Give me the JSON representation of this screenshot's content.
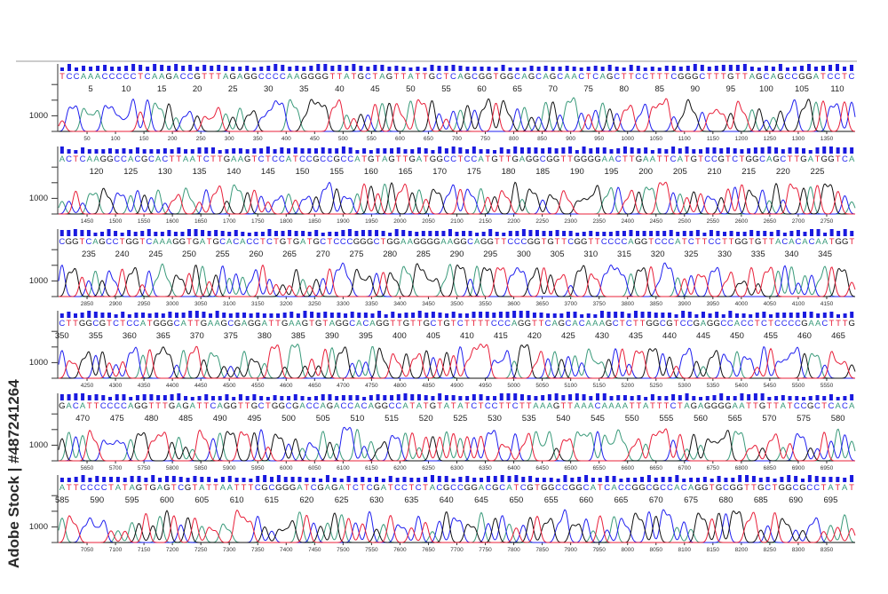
{
  "watermark": "Adobe Stock | #487241264",
  "colors": {
    "A": "#3a9a7a",
    "C": "#1f1fef",
    "G": "#111111",
    "T": "#e8203a",
    "quality_bar": "#1a1adf"
  },
  "chart_data": {
    "type": "chromatogram",
    "title": "",
    "y_tick_label": "1000",
    "rows": [
      {
        "sequence": "TCCAAACCCCCTCAAGACCGTTTAGAGGCCCCAAGGGGTTATGCTAGTTATTGCTCAGCGGTGGCAGCAGCAACTCAGCTTCCTTTCGGGCTTTGTTAGCAGCCGGATCCTC",
        "base_ticks": [
          5,
          10,
          15,
          20,
          25,
          30,
          35,
          40,
          45,
          50,
          55,
          60,
          65,
          70,
          75,
          80,
          85,
          90,
          95,
          100,
          105,
          110
        ],
        "scan_ticks": [
          50,
          100,
          150,
          200,
          250,
          300,
          350,
          400,
          450,
          500,
          550,
          600,
          650,
          700,
          750,
          800,
          850,
          900,
          950,
          1000,
          1050,
          1100,
          1150,
          1200,
          1250,
          1300,
          1350
        ]
      },
      {
        "sequence": "ACTCAAGGCCACGCACTTAATCTTGAAGTCTCCATCCGCCGCCATGTAGTTGATGGCCTCCATGTTGAGGCGGTTGGGGAACTTGAATTCATGTCCGTCTGGCAGCTTGATGGTCA",
        "base_ticks": [
          120,
          125,
          130,
          135,
          140,
          145,
          150,
          155,
          160,
          165,
          170,
          175,
          180,
          185,
          190,
          195,
          200,
          205,
          210,
          215,
          220,
          225
        ],
        "scan_ticks": [
          1450,
          1500,
          1550,
          1600,
          1650,
          1700,
          1750,
          1800,
          1850,
          1900,
          1950,
          2000,
          2050,
          2100,
          2150,
          2200,
          2250,
          2300,
          2350,
          2400,
          2450,
          2500,
          2550,
          2600,
          2650,
          2700,
          2750
        ]
      },
      {
        "sequence": "CGGTCAGCCTGGTCAAAGGTGATGCACACCTCTGTGATGCTCCCGGGCTGGAAGGGGAAGGCAGGTTCCCGGTGTTCGGTTCCCCAGGTCCCATCTTCCTTGGTGTTACACACAATGGT",
        "base_ticks": [
          235,
          240,
          245,
          250,
          255,
          260,
          265,
          270,
          275,
          280,
          285,
          290,
          295,
          300,
          305,
          310,
          315,
          320,
          325,
          330,
          335,
          340,
          345
        ],
        "scan_ticks": [
          2850,
          2900,
          2950,
          3000,
          3050,
          3100,
          3150,
          3200,
          3250,
          3300,
          3350,
          3400,
          3450,
          3500,
          3550,
          3600,
          3650,
          3700,
          3750,
          3800,
          3850,
          3900,
          3950,
          4000,
          4050,
          4100,
          4150
        ]
      },
      {
        "sequence": "CTTGGCGTCTCCATGGGCATTGAAGCGAGGATTGAAGTGTAGGCACAGGTTGTTGCTGTCTTTTCCCAGGTTCAGCACAAAGCTCTTGGCGTCCGAGGCCACCTCTCCCCGAACTTTG",
        "base_ticks": [
          350,
          355,
          360,
          365,
          370,
          375,
          380,
          385,
          390,
          395,
          400,
          405,
          410,
          415,
          420,
          425,
          430,
          435,
          440,
          445,
          450,
          455,
          460,
          465
        ],
        "scan_ticks": [
          4250,
          4300,
          4350,
          4400,
          4450,
          4500,
          4550,
          4600,
          4650,
          4700,
          4750,
          4800,
          4850,
          4900,
          4950,
          5000,
          5050,
          5100,
          5150,
          5200,
          5250,
          5300,
          5350,
          5400,
          5450,
          5500,
          5550
        ]
      },
      {
        "sequence": "GACATTCCCCAGGTTTGAGATTCAGGTTGCTGGCGACCAGACCACAGGCCATATGTATATCTCCTTCTTAAAGTTAAACAAAATTATTTCTAGAGGGGAATTGTTATCCGCTCACA",
        "base_ticks": [
          470,
          475,
          480,
          485,
          490,
          495,
          500,
          505,
          510,
          515,
          520,
          525,
          530,
          535,
          540,
          545,
          550,
          555,
          560,
          565,
          570,
          575,
          580
        ],
        "scan_ticks": [
          5650,
          5700,
          5750,
          5800,
          5850,
          5900,
          5950,
          6000,
          6050,
          6100,
          6150,
          6200,
          6250,
          6300,
          6350,
          6400,
          6450,
          6500,
          6550,
          6600,
          6650,
          6700,
          6750,
          6800,
          6850,
          6900,
          6950
        ]
      },
      {
        "sequence": "ATTCCCCTATAGTGAGTCGTATTAATTTCGCGGGATCGAGATCTCGATCCTCTACGCCGGACGCATCGTGGCCGGCATCACCGGCGCCACAGGTGCGGTTGCTGGCGCCTATAT",
        "base_ticks": [
          585,
          590,
          595,
          600,
          605,
          610,
          615,
          620,
          625,
          630,
          635,
          640,
          645,
          650,
          655,
          660,
          665,
          670,
          675,
          680,
          685,
          690,
          695
        ],
        "scan_ticks": [
          7050,
          7100,
          7150,
          7200,
          7250,
          7300,
          7350,
          7400,
          7450,
          7500,
          7550,
          7600,
          7650,
          7700,
          7750,
          7800,
          7850,
          7900,
          7950,
          8000,
          8050,
          8100,
          8150,
          8200,
          8250,
          8300,
          8350
        ]
      }
    ]
  }
}
